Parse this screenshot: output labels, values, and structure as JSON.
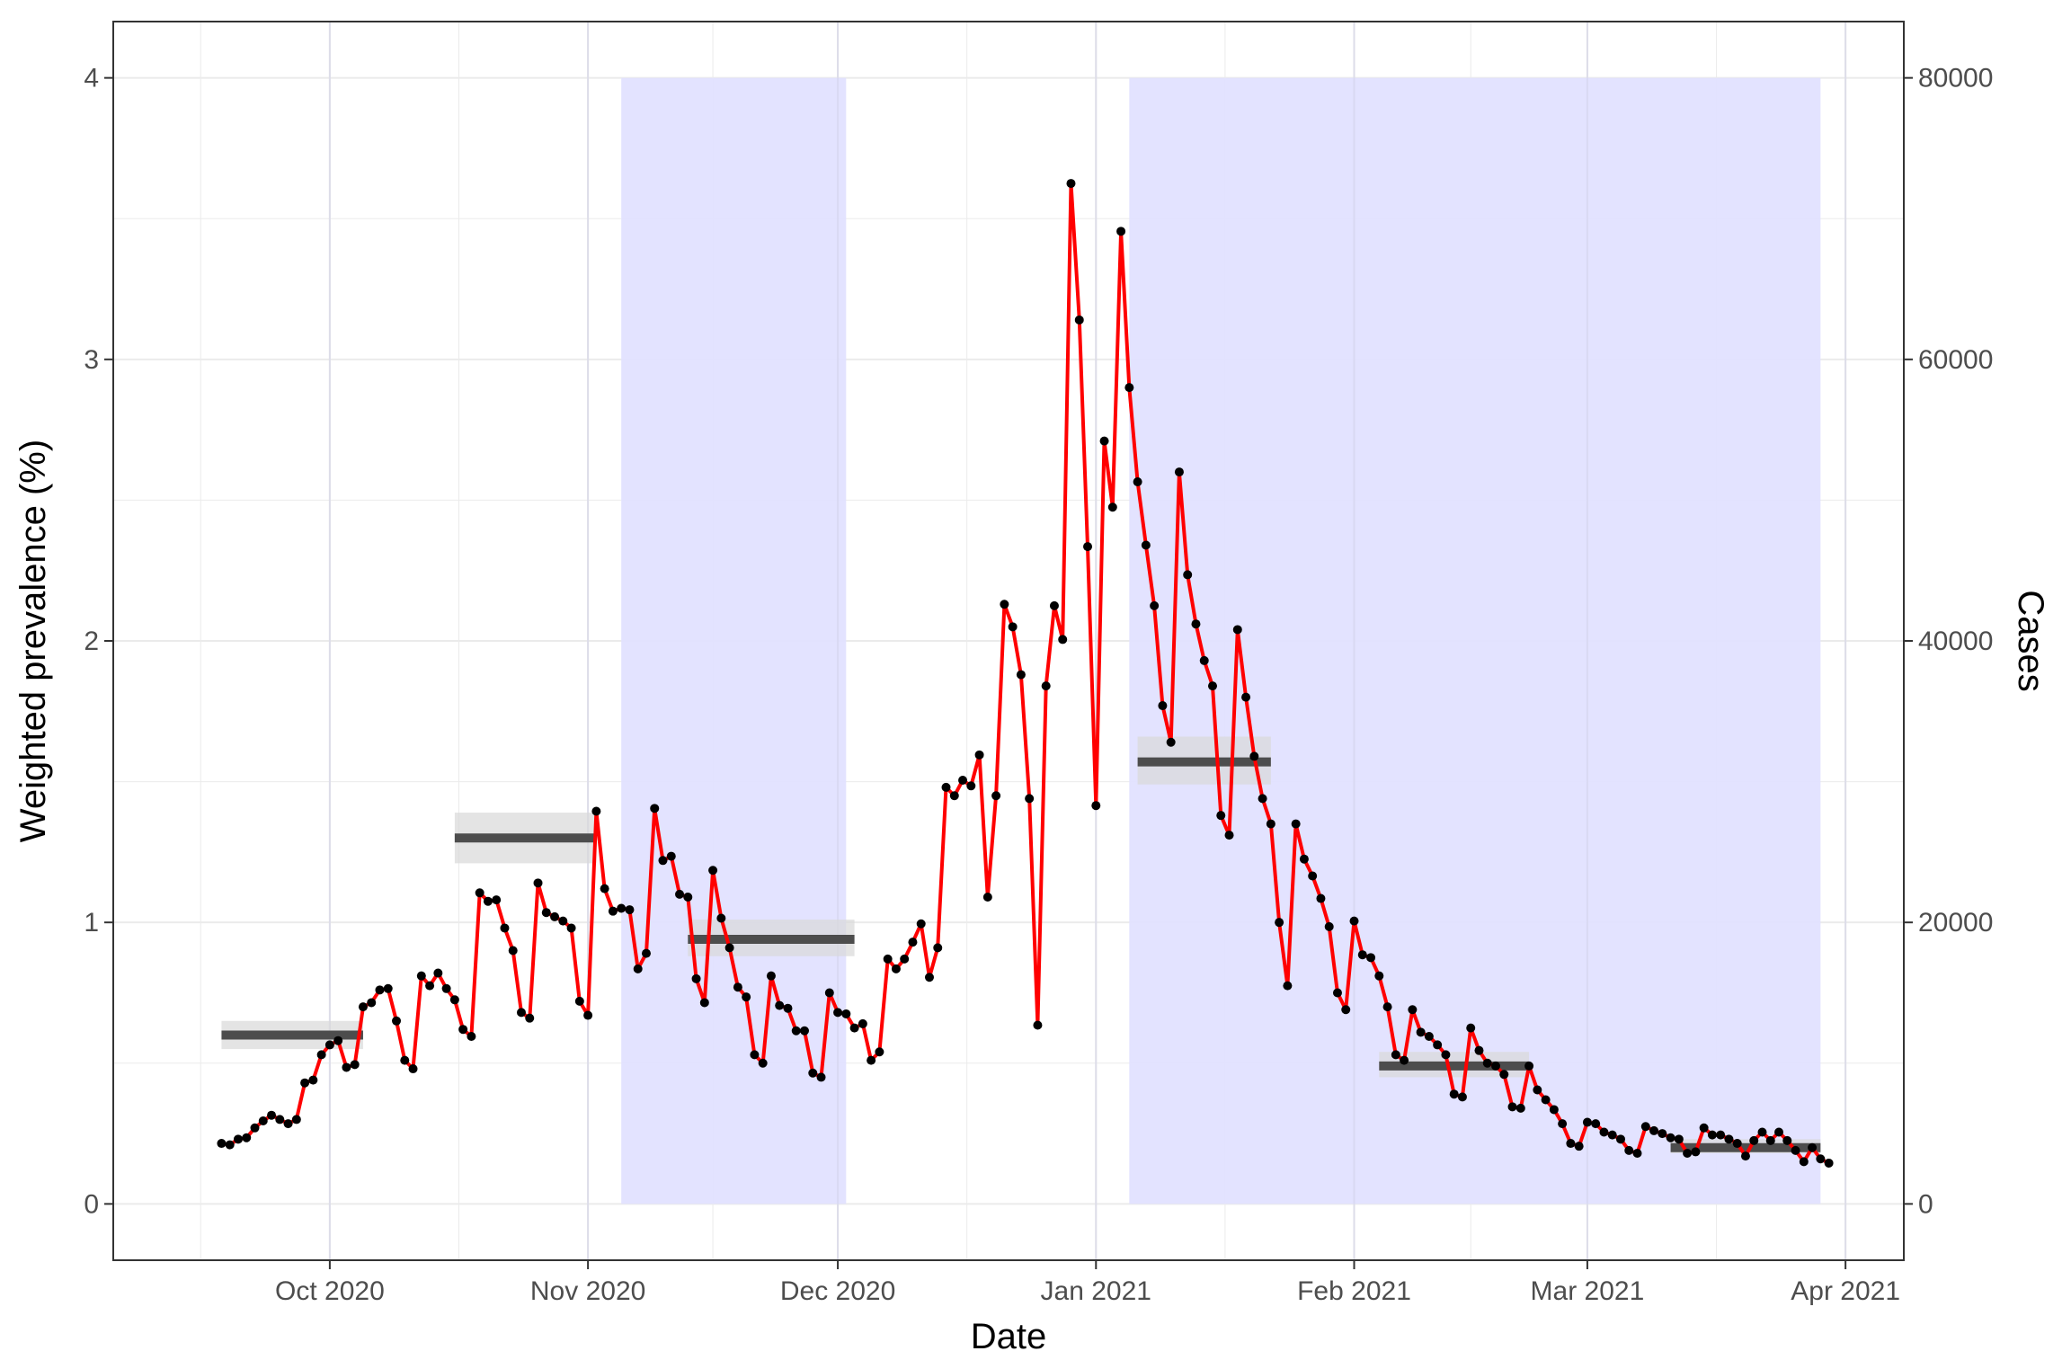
{
  "chart_data": {
    "type": "line",
    "xlabel": "Date",
    "ylabel": "Weighted prevalence (%)",
    "y2label": "Cases",
    "xlim": [
      "2020-09-05",
      "2021-04-08"
    ],
    "ylim": [
      -0.2,
      4.2
    ],
    "y2lim": [
      -4000,
      84000
    ],
    "x_ticks": [
      {
        "date": "2020-10-01",
        "label": "Oct 2020"
      },
      {
        "date": "2020-11-01",
        "label": "Nov 2020"
      },
      {
        "date": "2020-12-01",
        "label": "Dec 2020"
      },
      {
        "date": "2021-01-01",
        "label": "Jan 2021"
      },
      {
        "date": "2021-02-01",
        "label": "Feb 2021"
      },
      {
        "date": "2021-03-01",
        "label": "Mar 2021"
      },
      {
        "date": "2021-04-01",
        "label": "Apr 2021"
      }
    ],
    "y_ticks": [
      {
        "v": 0,
        "label": "0"
      },
      {
        "v": 1,
        "label": "1"
      },
      {
        "v": 2,
        "label": "2"
      },
      {
        "v": 3,
        "label": "3"
      },
      {
        "v": 4,
        "label": "4"
      }
    ],
    "y2_ticks": [
      {
        "v": 0,
        "label": "0"
      },
      {
        "v": 20000,
        "label": "20000"
      },
      {
        "v": 40000,
        "label": "40000"
      },
      {
        "v": 60000,
        "label": "60000"
      },
      {
        "v": 80000,
        "label": "80000"
      }
    ],
    "grid": true,
    "colors": {
      "line": "#ff0000",
      "points": "#000000",
      "lockdown_band": "#e2e2ff",
      "estimate_bar": "#4d4d4d",
      "estimate_ci": "#d9d9d9"
    },
    "shaded_periods": [
      {
        "start": "2020-11-05",
        "end": "2020-12-02"
      },
      {
        "start": "2021-01-05",
        "end": "2021-03-29"
      }
    ],
    "prevalence_estimates": [
      {
        "start": "2020-09-18",
        "end": "2020-10-05",
        "value": 0.6,
        "lower": 0.55,
        "upper": 0.65
      },
      {
        "start": "2020-10-16",
        "end": "2020-11-02",
        "value": 1.3,
        "lower": 1.21,
        "upper": 1.39
      },
      {
        "start": "2020-11-13",
        "end": "2020-12-03",
        "value": 0.94,
        "lower": 0.88,
        "upper": 1.01
      },
      {
        "start": "2021-01-06",
        "end": "2021-01-22",
        "value": 1.57,
        "lower": 1.49,
        "upper": 1.66
      },
      {
        "start": "2021-02-04",
        "end": "2021-02-22",
        "value": 0.49,
        "lower": 0.45,
        "upper": 0.54
      },
      {
        "start": "2021-03-11",
        "end": "2021-03-29",
        "value": 0.2,
        "lower": 0.18,
        "upper": 0.23
      }
    ],
    "series": [
      {
        "name": "",
        "start": "2020-09-18",
        "step_days": 1,
        "axis": "secondary",
        "values": [
          4300,
          4200,
          4600,
          4700,
          5400,
          5900,
          6300,
          6000,
          5700,
          6000,
          8600,
          8800,
          10600,
          11300,
          11600,
          9700,
          9900,
          14000,
          14300,
          15200,
          15300,
          13000,
          10200,
          9600,
          16200,
          15500,
          16400,
          15300,
          14500,
          12400,
          11900,
          22100,
          21500,
          21600,
          19600,
          18000,
          13600,
          13200,
          22800,
          20700,
          20400,
          20100,
          19600,
          14400,
          13400,
          27900,
          22400,
          20800,
          21000,
          20900,
          16700,
          17800,
          28100,
          24400,
          24700,
          22000,
          21800,
          16000,
          14300,
          23700,
          20300,
          18200,
          15400,
          14700,
          10600,
          10000,
          16200,
          14100,
          13900,
          12300,
          12300,
          9300,
          9000,
          15000,
          13600,
          13500,
          12500,
          12800,
          10200,
          10800,
          17400,
          16700,
          17400,
          18600,
          19900,
          16100,
          18200,
          29600,
          29000,
          30100,
          29700,
          31900,
          21800,
          29000,
          42600,
          41000,
          37600,
          28800,
          12700,
          36800,
          42500,
          40100,
          72500,
          62800,
          46700,
          28300,
          54200,
          49500,
          69100,
          58000,
          51300,
          46800,
          42500,
          35400,
          32800,
          52000,
          44700,
          41200,
          38600,
          36800,
          27600,
          26200,
          40800,
          36000,
          31800,
          28800,
          27000,
          20000,
          15500,
          27000,
          24500,
          23300,
          21700,
          19700,
          15000,
          13800,
          20100,
          17700,
          17500,
          16200,
          14000,
          10600,
          10200,
          13800,
          12200,
          11900,
          11300,
          10600,
          7800,
          7600,
          12500,
          10900,
          10000,
          9800,
          9200,
          6900,
          6800,
          9800,
          8100,
          7400,
          6700,
          5700,
          4300,
          4100,
          5800,
          5700,
          5100,
          4900,
          4600,
          3800,
          3600,
          5500,
          5200,
          5000,
          4700,
          4600,
          3600,
          3700,
          5400,
          4900,
          4900,
          4600,
          4300,
          3400,
          4500,
          5100,
          4500,
          5100,
          4500,
          3800,
          3000,
          4000,
          3200,
          2900
        ]
      }
    ]
  }
}
